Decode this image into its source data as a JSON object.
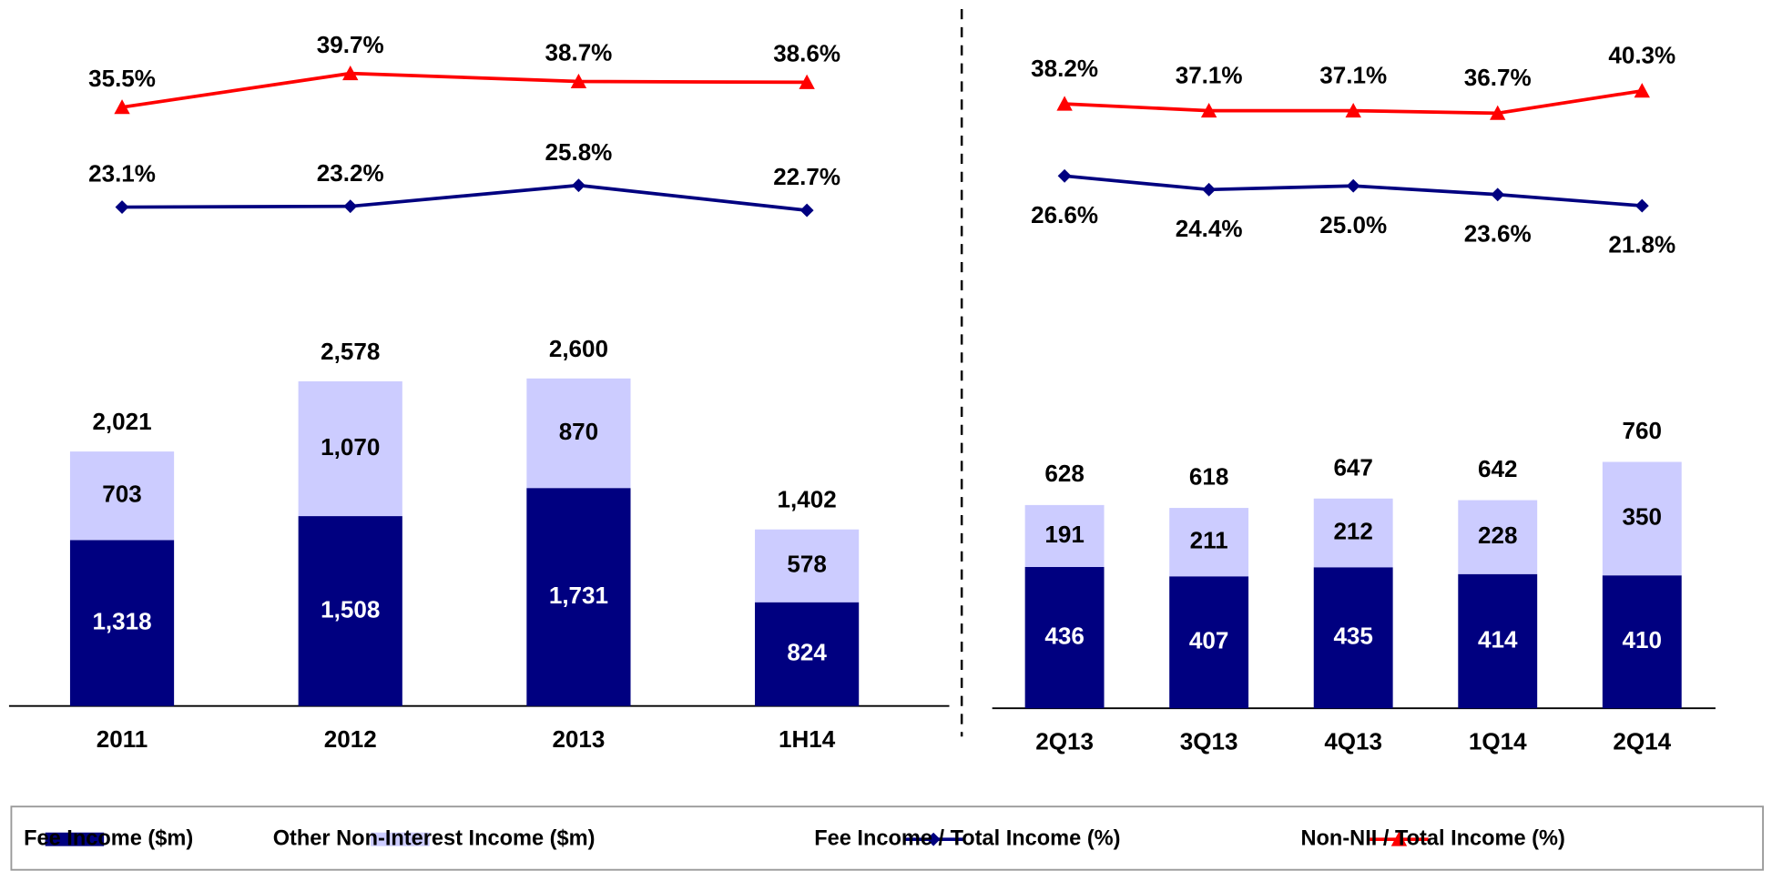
{
  "chart_data": [
    {
      "type": "bar-line",
      "categories": [
        "2011",
        "2012",
        "2013",
        "1H14"
      ],
      "series": [
        {
          "name": "Fee Income ($m)",
          "kind": "bar",
          "color": "#000080",
          "values": [
            1318,
            1508,
            1731,
            824
          ],
          "value_labels": [
            "1,318",
            "1,508",
            "1,731",
            "824"
          ]
        },
        {
          "name": "Other Non-Interest Income ($m)",
          "kind": "bar",
          "color": "#ccccff",
          "values": [
            703,
            1070,
            870,
            578
          ],
          "value_labels": [
            "703",
            "1,070",
            "870",
            "578"
          ]
        },
        {
          "name": "Fee Income / Total Income (%)",
          "kind": "line",
          "marker": "diamond",
          "color": "#000080",
          "values": [
            23.1,
            23.2,
            25.8,
            22.7
          ],
          "value_labels": [
            "23.1%",
            "23.2%",
            "25.8%",
            "22.7%"
          ]
        },
        {
          "name": "Non-NII / Total Income (%)",
          "kind": "line",
          "marker": "triangle",
          "color": "#ff0000",
          "values": [
            35.5,
            39.7,
            38.7,
            38.6
          ],
          "value_labels": [
            "35.5%",
            "39.7%",
            "38.7%",
            "38.6%"
          ]
        }
      ],
      "totals": [
        2021,
        2578,
        2600,
        1402
      ],
      "total_labels": [
        "2,021",
        "2,578",
        "2,600",
        "1,402"
      ]
    },
    {
      "type": "bar-line",
      "categories": [
        "2Q13",
        "3Q13",
        "4Q13",
        "1Q14",
        "2Q14"
      ],
      "series": [
        {
          "values": [
            436,
            407,
            435,
            414,
            410
          ]
        },
        {
          "values": [
            191,
            211,
            212,
            228,
            350
          ]
        },
        {
          "values": [
            26.6,
            24.4,
            25.0,
            23.6,
            21.8
          ],
          "value_labels": [
            "26.6%",
            "24.4%",
            "25.0%",
            "23.6%",
            "21.8%"
          ]
        },
        {
          "values": [
            38.2,
            37.1,
            37.1,
            36.7,
            40.3
          ],
          "value_labels": [
            "38.2%",
            "37.1%",
            "37.1%",
            "36.7%",
            "40.3%"
          ]
        }
      ],
      "totals": [
        628,
        618,
        647,
        642,
        760
      ]
    }
  ]
}
